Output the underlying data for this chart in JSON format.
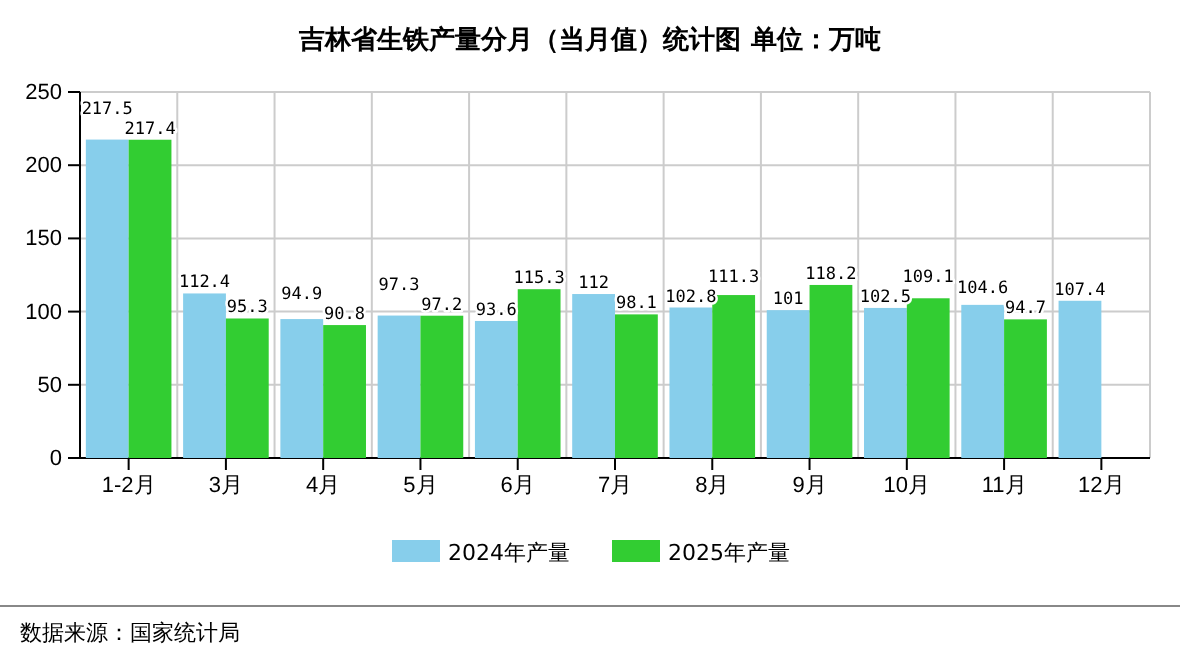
{
  "chart_data": {
    "type": "bar",
    "title": "吉林省生铁产量分月（当月值）统计图 单位：万吨",
    "categories": [
      "1-2月",
      "3月",
      "4月",
      "5月",
      "6月",
      "7月",
      "8月",
      "9月",
      "10月",
      "11月",
      "12月"
    ],
    "series": [
      {
        "name": "2024年产量",
        "color": "#87ceeb",
        "values": [
          217.5,
          112.4,
          94.9,
          97.3,
          93.6,
          112,
          102.8,
          101,
          102.5,
          104.6,
          107.4
        ]
      },
      {
        "name": "2025年产量",
        "color": "#32cd32",
        "values": [
          217.4,
          95.3,
          90.8,
          97.2,
          115.3,
          98.1,
          111.3,
          118.2,
          109.1,
          94.7,
          null
        ]
      }
    ],
    "ylim": [
      0,
      250
    ],
    "yticks": [
      0,
      50,
      100,
      150,
      200,
      250
    ],
    "grid": true,
    "legend": "bottom",
    "data_labels": true,
    "annotations": [
      "数据来源：国家统计局"
    ]
  }
}
